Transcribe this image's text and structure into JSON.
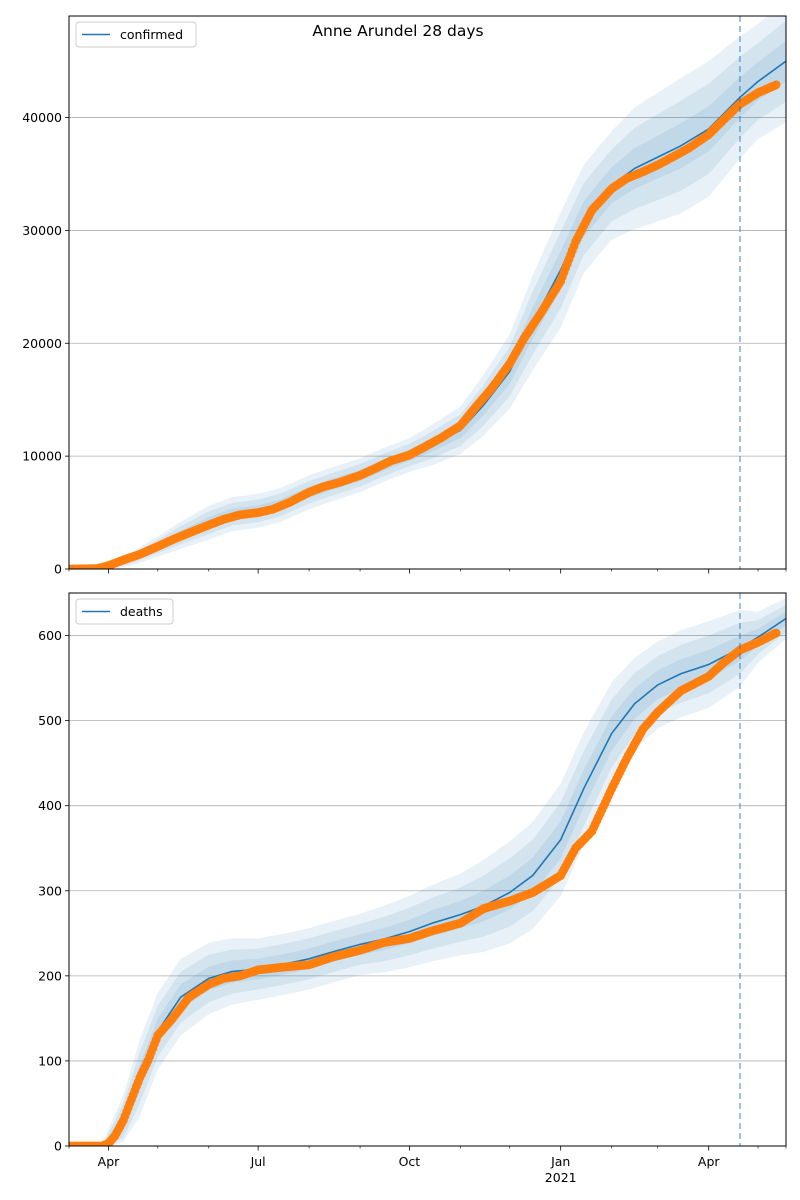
{
  "figure": {
    "suptitle": "Anne Arundel 28 days"
  },
  "colors": {
    "model_line": "#1f77b4",
    "observed": "#ff7f0e",
    "band": "#1f77b4",
    "grid": "#b0b0b0",
    "vline": "#1f77b4"
  },
  "chart_data": [
    {
      "type": "line",
      "title": "",
      "legend": [
        "confirmed"
      ],
      "legend_location": "upper-left",
      "xlabel": "",
      "ylabel": "",
      "x_range": [
        "2020-03-08",
        "2021-05-18"
      ],
      "ylim": [
        0,
        49000
      ],
      "yticks": [
        0,
        10000,
        20000,
        30000,
        40000
      ],
      "y_grid": true,
      "x_major_ticks": [
        {
          "date": "2020-04-01",
          "label": "Apr",
          "sublabel": ""
        },
        {
          "date": "2020-07-01",
          "label": "Jul",
          "sublabel": ""
        },
        {
          "date": "2020-10-01",
          "label": "Oct",
          "sublabel": ""
        },
        {
          "date": "2021-01-01",
          "label": "Jan",
          "sublabel": "2021"
        },
        {
          "date": "2021-04-01",
          "label": "Apr",
          "sublabel": ""
        }
      ],
      "x_minor_ticks": [
        "2020-03-08",
        "2020-05-01",
        "2020-06-01",
        "2020-08-01",
        "2020-09-01",
        "2020-11-01",
        "2020-12-01",
        "2021-02-01",
        "2021-03-01",
        "2021-05-01",
        "2021-05-18"
      ],
      "forecast_start": "2021-04-20",
      "model": {
        "dates": [
          "2020-03-08",
          "2020-03-20",
          "2020-04-01",
          "2020-04-15",
          "2020-05-01",
          "2020-05-15",
          "2020-06-01",
          "2020-06-15",
          "2020-07-01",
          "2020-07-15",
          "2020-08-01",
          "2020-08-15",
          "2020-09-01",
          "2020-09-15",
          "2020-10-01",
          "2020-10-15",
          "2020-11-01",
          "2020-11-15",
          "2020-12-01",
          "2020-12-15",
          "2021-01-01",
          "2021-01-15",
          "2021-02-01",
          "2021-02-15",
          "2021-03-01",
          "2021-03-15",
          "2021-04-01",
          "2021-04-20",
          "2021-05-01",
          "2021-05-18"
        ],
        "values": [
          0,
          0,
          100,
          900,
          2000,
          3000,
          4100,
          4850,
          5150,
          5700,
          6800,
          7500,
          8300,
          9200,
          10100,
          11000,
          12300,
          14500,
          17500,
          21800,
          26500,
          31000,
          34000,
          35500,
          36500,
          37500,
          39000,
          41800,
          43200,
          45000
        ],
        "bands": [
          {
            "lower": [
              0,
              0,
              50,
              700,
              1700,
              2600,
              3600,
              4350,
              4650,
              5200,
              6300,
              7000,
              7800,
              8700,
              9600,
              10400,
              11600,
              13600,
              16400,
              20400,
              24800,
              29400,
              32400,
              33700,
              34600,
              35500,
              37000,
              40000,
              41500,
              43200
            ],
            "upper": [
              0,
              0,
              150,
              1100,
              2300,
              3400,
              4600,
              5350,
              5650,
              6200,
              7300,
              8000,
              8800,
              9700,
              10600,
              11600,
              13000,
              15400,
              18600,
              23200,
              28200,
              32600,
              35600,
              37300,
              38400,
              39500,
              41000,
              43600,
              44900,
              46800
            ]
          },
          {
            "lower": [
              0,
              0,
              0,
              500,
              1400,
              2200,
              3100,
              3850,
              4150,
              4700,
              5800,
              6500,
              7300,
              8200,
              9100,
              9800,
              10900,
              12700,
              15300,
              19000,
              23100,
              27800,
              30800,
              31900,
              32700,
              33500,
              35000,
              38200,
              39800,
              41400
            ],
            "upper": [
              0,
              0,
              250,
              1300,
              2600,
              3800,
              5100,
              5850,
              6150,
              6700,
              7800,
              8500,
              9300,
              10200,
              11100,
              12200,
              13700,
              16300,
              19700,
              24600,
              29900,
              34200,
              37200,
              39100,
              40300,
              41500,
              43000,
              45400,
              46600,
              48600
            ]
          },
          {
            "lower": [
              0,
              0,
              0,
              300,
              1100,
              1800,
              2600,
              3350,
              3650,
              4200,
              5300,
              6000,
              6800,
              7700,
              8600,
              9200,
              10200,
              11800,
              14200,
              17600,
              21400,
              26200,
              29200,
              30100,
              30800,
              31500,
              33000,
              36400,
              38100,
              39600
            ],
            "upper": [
              0,
              0,
              350,
              1500,
              2900,
              4200,
              5600,
              6350,
              6650,
              7200,
              8300,
              9000,
              9800,
              10700,
              11600,
              12800,
              14400,
              17200,
              20800,
              26000,
              31600,
              35800,
              38800,
              40900,
              42200,
              43500,
              45000,
              47200,
              48300,
              50400
            ]
          }
        ]
      },
      "observed": {
        "dates": [
          "2020-03-08",
          "2020-03-25",
          "2020-04-01",
          "2020-04-10",
          "2020-04-20",
          "2020-05-01",
          "2020-05-10",
          "2020-05-20",
          "2020-06-01",
          "2020-06-10",
          "2020-06-20",
          "2020-07-01",
          "2020-07-10",
          "2020-07-20",
          "2020-08-01",
          "2020-08-10",
          "2020-08-20",
          "2020-09-01",
          "2020-09-10",
          "2020-09-20",
          "2020-10-01",
          "2020-10-10",
          "2020-10-20",
          "2020-11-01",
          "2020-11-10",
          "2020-11-20",
          "2020-12-01",
          "2020-12-10",
          "2020-12-20",
          "2021-01-01",
          "2021-01-10",
          "2021-01-20",
          "2021-02-01",
          "2021-02-10",
          "2021-02-20",
          "2021-03-01",
          "2021-03-10",
          "2021-03-20",
          "2021-04-01",
          "2021-04-10",
          "2021-04-20",
          "2021-05-01",
          "2021-05-12"
        ],
        "values": [
          0,
          30,
          300,
          800,
          1300,
          2000,
          2600,
          3200,
          3900,
          4400,
          4800,
          5000,
          5300,
          5900,
          6800,
          7300,
          7700,
          8300,
          8900,
          9600,
          10100,
          10800,
          11600,
          12700,
          14300,
          16000,
          18200,
          20500,
          22700,
          25500,
          29000,
          31800,
          33700,
          34600,
          35200,
          35800,
          36500,
          37300,
          38500,
          39800,
          41200,
          42200,
          42900
        ]
      }
    },
    {
      "type": "line",
      "title": "",
      "legend": [
        "deaths"
      ],
      "legend_location": "upper-left",
      "xlabel": "",
      "ylabel": "",
      "x_range": [
        "2020-03-08",
        "2021-05-18"
      ],
      "ylim": [
        0,
        650
      ],
      "yticks": [
        0,
        100,
        200,
        300,
        400,
        500,
        600
      ],
      "y_grid": true,
      "x_major_ticks": [
        {
          "date": "2020-04-01",
          "label": "Apr",
          "sublabel": ""
        },
        {
          "date": "2020-07-01",
          "label": "Jul",
          "sublabel": ""
        },
        {
          "date": "2020-10-01",
          "label": "Oct",
          "sublabel": ""
        },
        {
          "date": "2021-01-01",
          "label": "Jan",
          "sublabel": "2021"
        },
        {
          "date": "2021-04-01",
          "label": "Apr",
          "sublabel": ""
        }
      ],
      "x_minor_ticks": [
        "2020-03-08",
        "2020-05-01",
        "2020-06-01",
        "2020-08-01",
        "2020-09-01",
        "2020-11-01",
        "2020-12-01",
        "2021-02-01",
        "2021-03-01",
        "2021-05-01",
        "2021-05-18"
      ],
      "forecast_start": "2021-04-20",
      "model": {
        "dates": [
          "2020-03-08",
          "2020-03-28",
          "2020-04-01",
          "2020-04-10",
          "2020-04-20",
          "2020-05-01",
          "2020-05-15",
          "2020-06-01",
          "2020-06-15",
          "2020-07-01",
          "2020-07-15",
          "2020-08-01",
          "2020-08-15",
          "2020-09-01",
          "2020-09-15",
          "2020-10-01",
          "2020-10-15",
          "2020-11-01",
          "2020-11-15",
          "2020-12-01",
          "2020-12-15",
          "2021-01-01",
          "2021-01-15",
          "2021-02-01",
          "2021-02-15",
          "2021-03-01",
          "2021-03-15",
          "2021-04-01",
          "2021-04-20",
          "2021-05-01",
          "2021-05-18"
        ],
        "values": [
          0,
          0,
          5,
          30,
          80,
          135,
          175,
          197,
          205,
          208,
          213,
          220,
          228,
          237,
          243,
          252,
          262,
          272,
          282,
          298,
          318,
          360,
          420,
          485,
          520,
          542,
          555,
          566,
          585,
          598,
          620
        ],
        "bands": [
          {
            "lower": [
              0,
              0,
              0,
              20,
              65,
              120,
              160,
              183,
              192,
              196,
              201,
              208,
              216,
              225,
              230,
              238,
              247,
              256,
              264,
              278,
              297,
              338,
              398,
              465,
              502,
              525,
              538,
              549,
              570,
              588,
              612
            ],
            "upper": [
              0,
              0,
              10,
              40,
              95,
              150,
              190,
              211,
              218,
              220,
              225,
              232,
              240,
              249,
              256,
              266,
              277,
              288,
              300,
              318,
              339,
              382,
              442,
              505,
              538,
              559,
              572,
              583,
              600,
              608,
              628
            ]
          },
          {
            "lower": [
              0,
              0,
              0,
              10,
              50,
              105,
              145,
              169,
              179,
              184,
              189,
              196,
              204,
              213,
              217,
              224,
              232,
              240,
              246,
              258,
              276,
              316,
              376,
              445,
              484,
              508,
              521,
              532,
              555,
              578,
              604
            ],
            "upper": [
              0,
              0,
              15,
              50,
              110,
              165,
              205,
              225,
              231,
              232,
              237,
              244,
              252,
              261,
              269,
              280,
              292,
              304,
              318,
              338,
              360,
              404,
              464,
              525,
              556,
              576,
              589,
              600,
              615,
              618,
              636
            ]
          },
          {
            "lower": [
              0,
              0,
              0,
              5,
              35,
              90,
              130,
              155,
              166,
              172,
              177,
              184,
              192,
              201,
              204,
              210,
              217,
              224,
              228,
              238,
              255,
              294,
              354,
              425,
              466,
              491,
              504,
              515,
              540,
              568,
              596
            ],
            "upper": [
              0,
              0,
              20,
              60,
              125,
              180,
              220,
              239,
              244,
              244,
              249,
              256,
              264,
              273,
              282,
              294,
              307,
              320,
              336,
              358,
              381,
              426,
              486,
              545,
              574,
              593,
              606,
              617,
              630,
              628,
              644
            ]
          }
        ]
      },
      "observed": {
        "dates": [
          "2020-03-08",
          "2020-03-28",
          "2020-04-01",
          "2020-04-05",
          "2020-04-10",
          "2020-04-15",
          "2020-04-20",
          "2020-04-25",
          "2020-05-01",
          "2020-05-10",
          "2020-05-20",
          "2020-06-01",
          "2020-06-10",
          "2020-06-20",
          "2020-07-01",
          "2020-07-15",
          "2020-08-01",
          "2020-08-15",
          "2020-09-01",
          "2020-09-15",
          "2020-10-01",
          "2020-10-15",
          "2020-11-01",
          "2020-11-15",
          "2020-12-01",
          "2020-12-15",
          "2021-01-01",
          "2021-01-10",
          "2021-01-20",
          "2021-02-01",
          "2021-02-10",
          "2021-02-20",
          "2021-03-01",
          "2021-03-15",
          "2021-04-01",
          "2021-04-10",
          "2021-04-20",
          "2021-05-01",
          "2021-05-12"
        ],
        "values": [
          0,
          0,
          3,
          12,
          30,
          55,
          80,
          100,
          130,
          150,
          175,
          190,
          197,
          200,
          207,
          210,
          213,
          222,
          230,
          239,
          244,
          253,
          262,
          279,
          288,
          298,
          318,
          350,
          370,
          420,
          455,
          490,
          510,
          535,
          552,
          568,
          583,
          592,
          603
        ]
      }
    }
  ]
}
